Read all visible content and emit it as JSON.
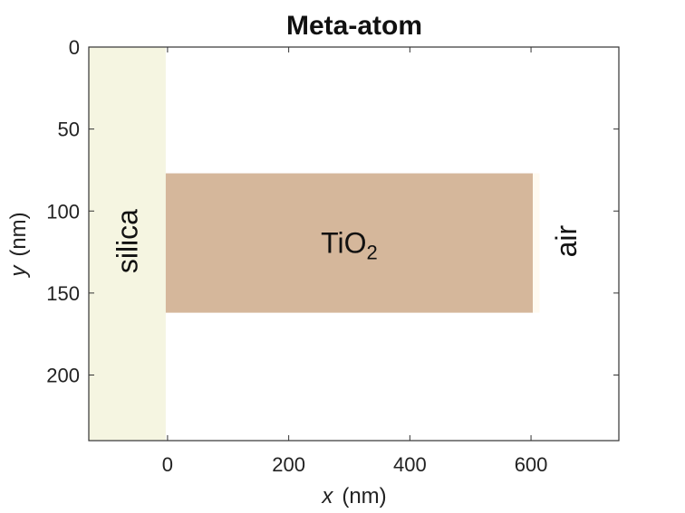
{
  "title": "Meta-atom",
  "xlabel": {
    "var": "x",
    "unit": "(nm)"
  },
  "ylabel": {
    "var": "y",
    "unit": "(nm)"
  },
  "axes": {
    "xlim": [
      -130,
      745
    ],
    "ylim": [
      0,
      240
    ],
    "y_reversed": true,
    "xticks": [
      0,
      200,
      400,
      600
    ],
    "yticks": [
      0,
      50,
      100,
      150,
      200
    ],
    "box": true
  },
  "regions": {
    "silica": {
      "label": "silica",
      "color": "#f5f5e1",
      "x_range": [
        -130,
        -3
      ],
      "y_range": [
        0,
        240
      ]
    },
    "tio2": {
      "label_main": "TiO",
      "label_sub": "2",
      "color": "#d5b79b",
      "x_range": [
        -3,
        603
      ],
      "y_range": [
        77,
        162
      ]
    },
    "tio2_edge": {
      "color": "#fffaf0",
      "x_range": [
        603,
        614
      ],
      "y_range": [
        77,
        162
      ]
    },
    "air": {
      "label": "air"
    }
  },
  "colors": {
    "axis": "#333333",
    "background": "#ffffff"
  }
}
